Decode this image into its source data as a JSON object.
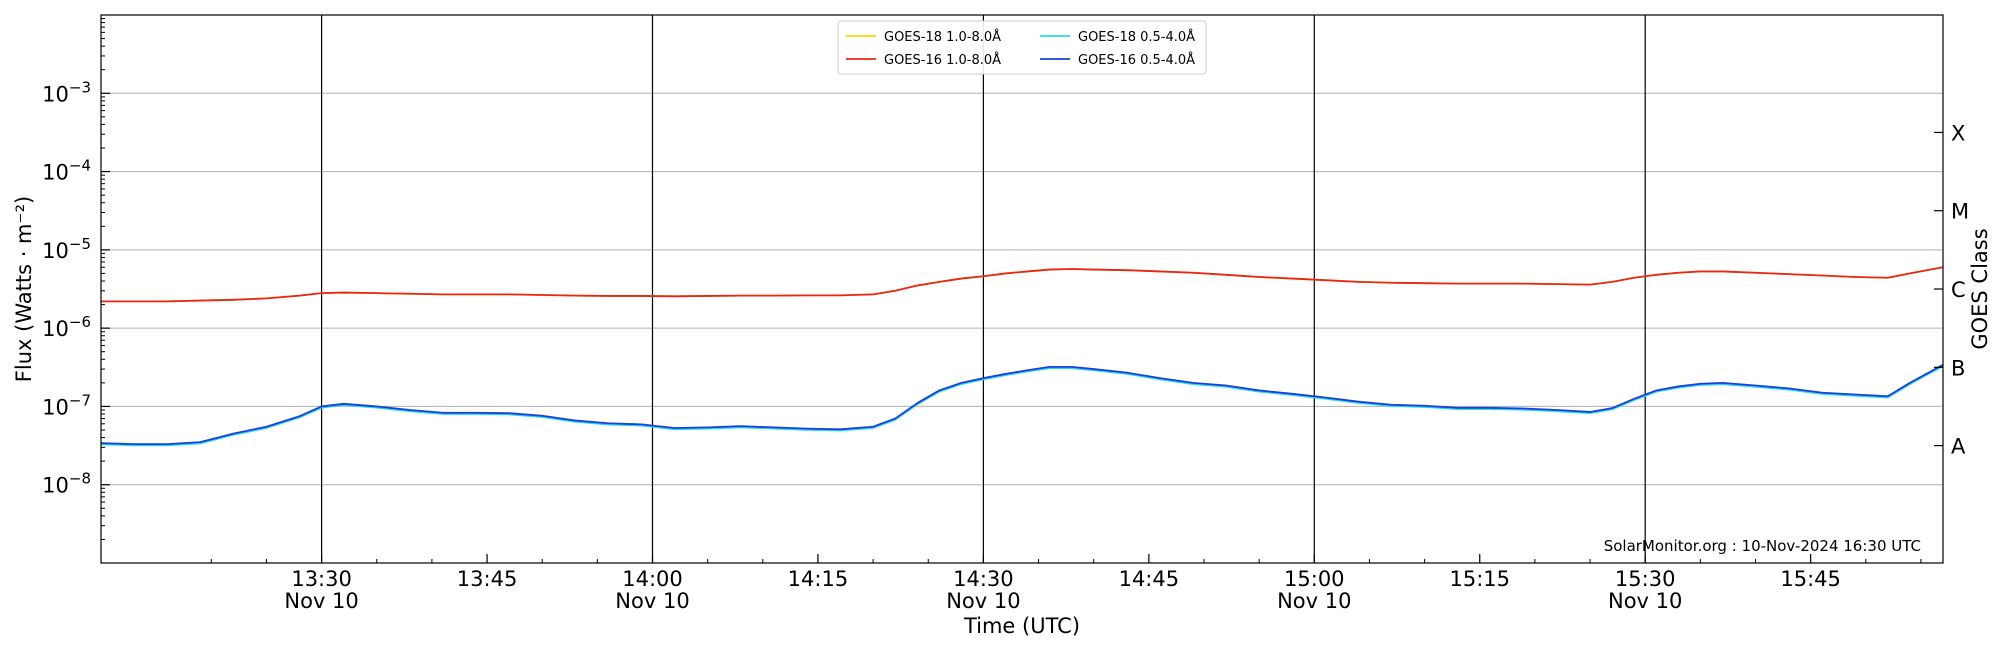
{
  "chart_data": {
    "type": "line",
    "title": "",
    "xlabel": "Time (UTC)",
    "ylabel": "Flux (Watts · m⁻²)",
    "y_scale": "log",
    "ylim": [
      1e-09,
      0.01
    ],
    "xlim": [
      "2024-11-10 13:10",
      "2024-11-10 15:57"
    ],
    "grid": "horizontal at each decade; vertical lines at 30-minute marks",
    "legend_placement": "top-center",
    "credit": "SolarMonitor.org : 10-Nov-2024 16:30 UTC",
    "y_ticks": [
      {
        "value": 1e-08,
        "base": "10",
        "exp": "−8"
      },
      {
        "value": 1e-07,
        "base": "10",
        "exp": "−7"
      },
      {
        "value": 1e-06,
        "base": "10",
        "exp": "−6"
      },
      {
        "value": 1e-05,
        "base": "10",
        "exp": "−5"
      },
      {
        "value": 0.0001,
        "base": "10",
        "exp": "−4"
      },
      {
        "value": 0.001,
        "base": "10",
        "exp": "−3"
      }
    ],
    "x_ticks": [
      {
        "time": "13:30",
        "date": "Nov 10"
      },
      {
        "time": "13:45",
        "date": ""
      },
      {
        "time": "14:00",
        "date": "Nov 10"
      },
      {
        "time": "14:15",
        "date": ""
      },
      {
        "time": "14:30",
        "date": "Nov 10"
      },
      {
        "time": "14:45",
        "date": ""
      },
      {
        "time": "15:00",
        "date": "Nov 10"
      },
      {
        "time": "15:15",
        "date": ""
      },
      {
        "time": "15:30",
        "date": "Nov 10"
      },
      {
        "time": "15:45",
        "date": ""
      }
    ],
    "right_axis": {
      "label": "GOES Class",
      "classes": [
        {
          "name": "A",
          "flux": 3.16e-08
        },
        {
          "name": "B",
          "flux": 3.16e-07
        },
        {
          "name": "C",
          "flux": 3.16e-06
        },
        {
          "name": "M",
          "flux": 3.16e-05
        },
        {
          "name": "X",
          "flux": 0.000316
        }
      ]
    },
    "x": [
      "13:10",
      "13:13",
      "13:16",
      "13:19",
      "13:22",
      "13:25",
      "13:28",
      "13:30",
      "13:32",
      "13:35",
      "13:38",
      "13:41",
      "13:44",
      "13:47",
      "13:50",
      "13:53",
      "13:56",
      "13:59",
      "14:02",
      "14:05",
      "14:08",
      "14:11",
      "14:14",
      "14:17",
      "14:20",
      "14:22",
      "14:24",
      "14:26",
      "14:28",
      "14:30",
      "14:32",
      "14:34",
      "14:36",
      "14:38",
      "14:40",
      "14:43",
      "14:46",
      "14:49",
      "14:52",
      "14:55",
      "14:58",
      "15:01",
      "15:04",
      "15:07",
      "15:10",
      "15:13",
      "15:16",
      "15:19",
      "15:22",
      "15:25",
      "15:27",
      "15:29",
      "15:31",
      "15:33",
      "15:35",
      "15:37",
      "15:40",
      "15:43",
      "15:46",
      "15:49",
      "15:52",
      "15:54",
      "15:57"
    ],
    "series": [
      {
        "name": "GOES-18 1.0-8.0Å",
        "color": "#ffd400",
        "values": [
          2.2e-06,
          2.2e-06,
          2.2e-06,
          2.25e-06,
          2.3e-06,
          2.4e-06,
          2.6e-06,
          2.8e-06,
          2.85e-06,
          2.8e-06,
          2.75e-06,
          2.7e-06,
          2.7e-06,
          2.7e-06,
          2.65e-06,
          2.6e-06,
          2.58e-06,
          2.58e-06,
          2.55e-06,
          2.58e-06,
          2.6e-06,
          2.6e-06,
          2.62e-06,
          2.62e-06,
          2.7e-06,
          3e-06,
          3.5e-06,
          3.9e-06,
          4.3e-06,
          4.6e-06,
          5e-06,
          5.3e-06,
          5.6e-06,
          5.7e-06,
          5.6e-06,
          5.5e-06,
          5.3e-06,
          5.1e-06,
          4.8e-06,
          4.5e-06,
          4.3e-06,
          4.1e-06,
          3.9e-06,
          3.8e-06,
          3.75e-06,
          3.7e-06,
          3.7e-06,
          3.7e-06,
          3.65e-06,
          3.6e-06,
          3.9e-06,
          4.4e-06,
          4.8e-06,
          5.1e-06,
          5.3e-06,
          5.3e-06,
          5.1e-06,
          4.9e-06,
          4.7e-06,
          4.5e-06,
          4.4e-06,
          5e-06,
          6e-06
        ]
      },
      {
        "name": "GOES-16 1.0-8.0Å",
        "color": "#e8261a",
        "values": [
          2.2e-06,
          2.2e-06,
          2.2e-06,
          2.25e-06,
          2.3e-06,
          2.4e-06,
          2.6e-06,
          2.8e-06,
          2.85e-06,
          2.8e-06,
          2.75e-06,
          2.7e-06,
          2.7e-06,
          2.7e-06,
          2.65e-06,
          2.6e-06,
          2.58e-06,
          2.58e-06,
          2.55e-06,
          2.58e-06,
          2.6e-06,
          2.6e-06,
          2.62e-06,
          2.62e-06,
          2.7e-06,
          3e-06,
          3.5e-06,
          3.9e-06,
          4.3e-06,
          4.6e-06,
          5e-06,
          5.3e-06,
          5.6e-06,
          5.7e-06,
          5.6e-06,
          5.5e-06,
          5.3e-06,
          5.1e-06,
          4.8e-06,
          4.5e-06,
          4.3e-06,
          4.1e-06,
          3.9e-06,
          3.8e-06,
          3.75e-06,
          3.7e-06,
          3.7e-06,
          3.7e-06,
          3.65e-06,
          3.6e-06,
          3.9e-06,
          4.4e-06,
          4.8e-06,
          5.1e-06,
          5.3e-06,
          5.3e-06,
          5.1e-06,
          4.9e-06,
          4.7e-06,
          4.5e-06,
          4.4e-06,
          5e-06,
          6e-06
        ]
      },
      {
        "name": "GOES-18 0.5-4.0Å",
        "color": "#22d8ee",
        "values": [
          3.4e-08,
          3.3e-08,
          3.3e-08,
          3.5e-08,
          4.5e-08,
          5.5e-08,
          7.5e-08,
          1e-07,
          1.08e-07,
          1e-07,
          9e-08,
          8.3e-08,
          8.3e-08,
          8.2e-08,
          7.6e-08,
          6.6e-08,
          6.1e-08,
          5.9e-08,
          5.3e-08,
          5.4e-08,
          5.6e-08,
          5.4e-08,
          5.2e-08,
          5.1e-08,
          5.5e-08,
          7e-08,
          1.1e-07,
          1.6e-07,
          2e-07,
          2.3e-07,
          2.6e-07,
          2.9e-07,
          3.2e-07,
          3.2e-07,
          3e-07,
          2.7e-07,
          2.3e-07,
          2e-07,
          1.85e-07,
          1.6e-07,
          1.45e-07,
          1.3e-07,
          1.15e-07,
          1.05e-07,
          1.02e-07,
          9.6e-08,
          9.6e-08,
          9.4e-08,
          9e-08,
          8.5e-08,
          9.5e-08,
          1.25e-07,
          1.6e-07,
          1.8e-07,
          1.95e-07,
          2e-07,
          1.85e-07,
          1.7e-07,
          1.5e-07,
          1.42e-07,
          1.35e-07,
          2e-07,
          3.4e-07
        ]
      },
      {
        "name": "GOES-16 0.5-4.0Å",
        "color": "#1b3fd9",
        "values": [
          3.4e-08,
          3.3e-08,
          3.3e-08,
          3.5e-08,
          4.5e-08,
          5.5e-08,
          7.5e-08,
          1e-07,
          1.08e-07,
          1e-07,
          9e-08,
          8.3e-08,
          8.3e-08,
          8.2e-08,
          7.6e-08,
          6.6e-08,
          6.1e-08,
          5.9e-08,
          5.3e-08,
          5.4e-08,
          5.6e-08,
          5.4e-08,
          5.2e-08,
          5.1e-08,
          5.5e-08,
          7e-08,
          1.1e-07,
          1.6e-07,
          2e-07,
          2.3e-07,
          2.6e-07,
          2.9e-07,
          3.2e-07,
          3.2e-07,
          3e-07,
          2.7e-07,
          2.3e-07,
          2e-07,
          1.85e-07,
          1.6e-07,
          1.45e-07,
          1.3e-07,
          1.15e-07,
          1.05e-07,
          1.02e-07,
          9.6e-08,
          9.6e-08,
          9.4e-08,
          9e-08,
          8.5e-08,
          9.5e-08,
          1.25e-07,
          1.6e-07,
          1.8e-07,
          1.95e-07,
          2e-07,
          1.85e-07,
          1.7e-07,
          1.5e-07,
          1.42e-07,
          1.35e-07,
          2e-07,
          3.4e-07
        ]
      }
    ]
  }
}
